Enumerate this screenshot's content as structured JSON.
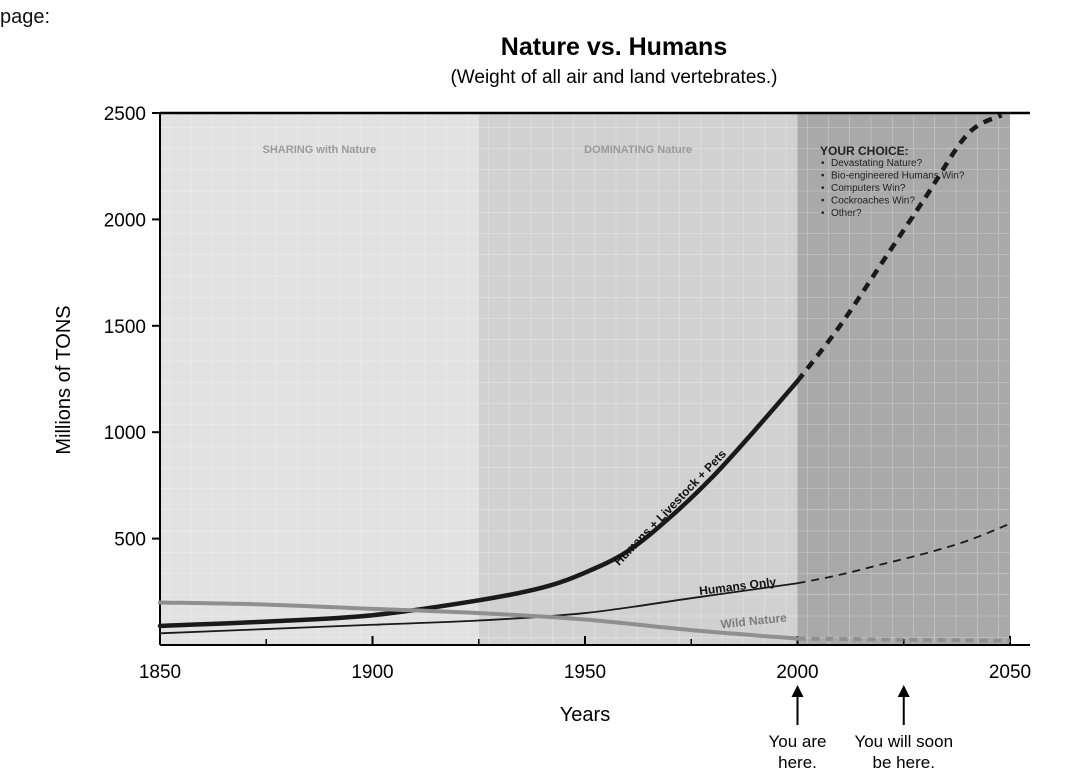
{
  "corner_label": "page:",
  "chart_data": {
    "type": "line",
    "title": "Nature vs. Humans",
    "subtitle": "(Weight of all air and land vertebrates.)",
    "xlabel": "Years",
    "ylabel": "Millions of TONS",
    "xlim": [
      1850,
      2050
    ],
    "ylim": [
      0,
      2500
    ],
    "x_ticks": [
      1850,
      1900,
      1950,
      2000,
      2050
    ],
    "y_ticks": [
      500,
      1000,
      1500,
      2000,
      2500
    ],
    "grid": true,
    "eras": [
      {
        "label": "SHARING with Nature",
        "from": 1850,
        "to": 1925
      },
      {
        "label": "DOMINATING Nature",
        "from": 1925,
        "to": 2000
      },
      {
        "label": "YOUR CHOICE:",
        "from": 2000,
        "to": 2050
      }
    ],
    "choice_items": [
      "Devastating Nature?",
      "Bio-engineered Humans Win?",
      "Computers Win?",
      "Cockroaches Win?",
      "Other?"
    ],
    "series": [
      {
        "name": "Humans + Livestock + Pets",
        "color": "#1a1a1a",
        "x": [
          1850,
          1875,
          1900,
          1925,
          1940,
          1950,
          1960,
          1970,
          1980,
          1990,
          2000
        ],
        "y": [
          90,
          110,
          140,
          210,
          270,
          340,
          440,
          600,
          790,
          1010,
          1240
        ],
        "projection": {
          "x": [
            2000,
            2010,
            2020,
            2030,
            2040,
            2048
          ],
          "y": [
            1240,
            1500,
            1800,
            2100,
            2400,
            2490
          ]
        }
      },
      {
        "name": "Humans Only",
        "color": "#1a1a1a",
        "x": [
          1850,
          1875,
          1900,
          1925,
          1950,
          1975,
          2000
        ],
        "y": [
          55,
          75,
          95,
          115,
          150,
          220,
          290
        ],
        "projection": {
          "x": [
            2000,
            2010,
            2020,
            2030,
            2040,
            2050
          ],
          "y": [
            290,
            330,
            380,
            430,
            490,
            570
          ]
        }
      },
      {
        "name": "Wild Nature",
        "color": "#8f8f8f",
        "x": [
          1850,
          1875,
          1900,
          1925,
          1950,
          1975,
          2000
        ],
        "y": [
          200,
          190,
          170,
          150,
          120,
          70,
          30
        ],
        "projection": {
          "x": [
            2000,
            2025,
            2050
          ],
          "y": [
            30,
            25,
            20
          ]
        }
      }
    ],
    "annotations": [
      {
        "text_lines": [
          "You are",
          "here."
        ],
        "x": 2000
      },
      {
        "text_lines": [
          "You will soon",
          "be here."
        ],
        "x": 2025
      }
    ]
  }
}
